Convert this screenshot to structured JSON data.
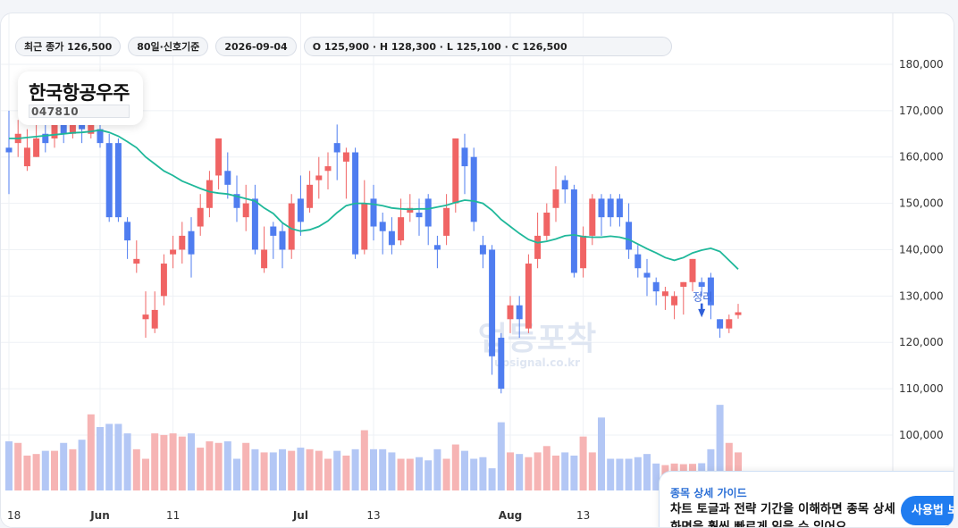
{
  "info_pills": {
    "close": "최근 종가 126,500",
    "period": "80일·신호기준",
    "date": "2026-09-04",
    "ohlc": "O 125,900 · H 128,300 · L 125,100 · C 126,500"
  },
  "stock": {
    "name": "한국항공우주",
    "code": "047810"
  },
  "watermark": {
    "main": "업등포착",
    "sub": "upsignal.co.kr"
  },
  "guide": {
    "title": "종목 상세 가이드",
    "text": "차트 토글과 전략 기간을 이해하면 종목 상세 화면을 훨씬 빠르게 읽을 수 있어요.",
    "button": "사용법 보기"
  },
  "colors": {
    "up": "#f06464",
    "down": "#4f7df0",
    "ma": "#1fb89a",
    "vol_up": "#f6b4b4",
    "vol_down": "#b3c7f5"
  },
  "chart_data": {
    "type": "candlestick",
    "ylim": [
      100000,
      185000
    ],
    "y_ticks": [
      100000,
      110000,
      120000,
      130000,
      140000,
      150000,
      160000,
      170000,
      180000
    ],
    "y_tick_labels": [
      "100,000",
      "110,000",
      "120,000",
      "130,000",
      "140,000",
      "150,000",
      "160,000",
      "170,000",
      "180,000"
    ],
    "x_tick_labels": [
      {
        "label": "18",
        "index": 0,
        "bold": false
      },
      {
        "label": "Jun",
        "index": 10,
        "bold": true
      },
      {
        "label": "11",
        "index": 18,
        "bold": false
      },
      {
        "label": "Jul",
        "index": 32,
        "bold": true
      },
      {
        "label": "13",
        "index": 40,
        "bold": false
      },
      {
        "label": "Aug",
        "index": 55,
        "bold": true
      },
      {
        "label": "13",
        "index": 63,
        "bold": false
      }
    ],
    "signal": {
      "label": "정리",
      "index": 76
    },
    "candles": [
      [
        162000,
        161000,
        170000,
        152000
      ],
      [
        163000,
        165000,
        168000,
        160000
      ],
      [
        158000,
        162000,
        166000,
        157000
      ],
      [
        160000,
        164000,
        168000,
        160000
      ],
      [
        165000,
        163000,
        167000,
        161000
      ],
      [
        164000,
        168000,
        171000,
        162000
      ],
      [
        167000,
        165000,
        170000,
        163000
      ],
      [
        165000,
        167000,
        170000,
        164000
      ],
      [
        168000,
        166000,
        171000,
        163000
      ],
      [
        165000,
        167000,
        171000,
        164000
      ],
      [
        166000,
        163000,
        169000,
        162000
      ],
      [
        163000,
        147000,
        165000,
        146000
      ],
      [
        163000,
        147000,
        164000,
        146000
      ],
      [
        146000,
        142000,
        147000,
        138000
      ],
      [
        137000,
        138000,
        142000,
        135000
      ],
      [
        125000,
        126000,
        131000,
        121000
      ],
      [
        123000,
        127000,
        131000,
        122000
      ],
      [
        130000,
        137000,
        139000,
        128000
      ],
      [
        139000,
        140000,
        143000,
        136000
      ],
      [
        140000,
        143000,
        146000,
        137000
      ],
      [
        144000,
        139000,
        147000,
        134000
      ],
      [
        145000,
        149000,
        152000,
        143000
      ],
      [
        149000,
        155000,
        157000,
        147000
      ],
      [
        156000,
        164000,
        164000,
        153000
      ],
      [
        157000,
        154000,
        161000,
        151000
      ],
      [
        152000,
        149000,
        156000,
        146000
      ],
      [
        147000,
        150000,
        154000,
        144000
      ],
      [
        151000,
        140000,
        154000,
        139000
      ],
      [
        136000,
        140000,
        145000,
        135000
      ],
      [
        145000,
        143000,
        146000,
        138000
      ],
      [
        144000,
        140000,
        146000,
        136000
      ],
      [
        140000,
        150000,
        152000,
        138000
      ],
      [
        151000,
        146000,
        156000,
        143000
      ],
      [
        149000,
        154000,
        157000,
        148000
      ],
      [
        155000,
        156000,
        160000,
        151000
      ],
      [
        157000,
        158000,
        161000,
        153000
      ],
      [
        163000,
        161000,
        167000,
        155000
      ],
      [
        159000,
        161000,
        162000,
        151000
      ],
      [
        161000,
        139000,
        162000,
        138000
      ],
      [
        140000,
        150000,
        155000,
        139000
      ],
      [
        151000,
        145000,
        154000,
        142000
      ],
      [
        146000,
        144000,
        148000,
        139000
      ],
      [
        144000,
        141000,
        147000,
        139000
      ],
      [
        142000,
        147000,
        151000,
        141000
      ],
      [
        148000,
        149000,
        152000,
        146000
      ],
      [
        148000,
        147000,
        151000,
        143000
      ],
      [
        151000,
        145000,
        152000,
        141000
      ],
      [
        141000,
        140000,
        143000,
        136000
      ],
      [
        143000,
        149000,
        152000,
        141000
      ],
      [
        150000,
        164000,
        164000,
        148000
      ],
      [
        162000,
        158000,
        165000,
        152000
      ],
      [
        160000,
        146000,
        162000,
        144000
      ],
      [
        141000,
        139000,
        143000,
        136000
      ],
      [
        140000,
        117000,
        141000,
        113000
      ],
      [
        121000,
        110000,
        122000,
        109000
      ],
      [
        125000,
        128000,
        130000,
        122000
      ],
      [
        128000,
        125000,
        130000,
        121000
      ],
      [
        123000,
        137000,
        139000,
        122000
      ],
      [
        138000,
        143000,
        148000,
        136000
      ],
      [
        143000,
        148000,
        150000,
        142000
      ],
      [
        149000,
        153000,
        158000,
        146000
      ],
      [
        155000,
        153000,
        156000,
        150000
      ],
      [
        153000,
        135000,
        154000,
        134000
      ],
      [
        136000,
        143000,
        145000,
        134000
      ],
      [
        143000,
        151000,
        152000,
        141000
      ],
      [
        151000,
        147000,
        152000,
        143000
      ],
      [
        151000,
        147000,
        152000,
        145000
      ],
      [
        151000,
        147000,
        152000,
        145000
      ],
      [
        146000,
        140000,
        150000,
        138000
      ],
      [
        139000,
        136000,
        141000,
        134000
      ],
      [
        135000,
        134000,
        138000,
        130000
      ],
      [
        133000,
        131000,
        134000,
        128000
      ],
      [
        130000,
        131000,
        132000,
        127000
      ],
      [
        128000,
        130000,
        131000,
        125000
      ],
      [
        132000,
        133000,
        133000,
        126000
      ],
      [
        133000,
        138000,
        138000,
        131000
      ],
      [
        133000,
        132000,
        134000,
        130000
      ],
      [
        134000,
        128000,
        135000,
        125000
      ],
      [
        125000,
        123000,
        125000,
        121000
      ],
      [
        123000,
        125000,
        126000,
        122000
      ],
      [
        125900,
        126500,
        128300,
        125100
      ]
    ],
    "ma": [
      164000,
      164000,
      164200,
      164400,
      164600,
      164800,
      165000,
      165200,
      165300,
      165500,
      165800,
      165300,
      164500,
      163300,
      162000,
      160000,
      158500,
      157000,
      156000,
      154800,
      154000,
      153200,
      152500,
      152200,
      152000,
      151500,
      151000,
      150500,
      149000,
      147800,
      145800,
      144500,
      144000,
      144300,
      145000,
      146200,
      148000,
      149500,
      150000,
      150000,
      149800,
      149500,
      149000,
      148800,
      148700,
      148800,
      148800,
      149200,
      149600,
      150200,
      150700,
      150500,
      150000,
      148500,
      146500,
      145000,
      143500,
      142200,
      141500,
      141800,
      142300,
      143000,
      143200,
      142800,
      142700,
      142700,
      142900,
      142700,
      142200,
      141200,
      140200,
      139300,
      138300,
      137700,
      138300,
      139300,
      139900,
      140300,
      139600,
      137700,
      135800
    ],
    "volume": [
      15.5,
      15,
      11,
      11.5,
      12.5,
      12.5,
      15,
      13,
      16,
      24,
      20,
      21,
      21,
      18,
      13,
      10,
      18,
      17.5,
      18,
      17,
      18,
      13.5,
      15.5,
      15,
      15.5,
      10,
      15,
      13,
      12,
      12,
      13,
      12.5,
      13.5,
      13,
      12.5,
      10,
      12.5,
      11,
      13,
      19,
      13,
      13,
      12,
      10,
      10,
      10.5,
      9.5,
      13,
      10,
      14.5,
      12.5,
      10,
      10.5,
      7,
      21.5,
      12,
      11.5,
      10.5,
      12,
      14,
      11,
      12,
      11,
      17,
      12,
      23,
      10,
      10,
      10,
      10.5,
      11.5,
      8.5,
      8,
      8.5,
      8.3,
      8.4,
      8.6,
      13,
      27,
      15,
      12
    ]
  }
}
